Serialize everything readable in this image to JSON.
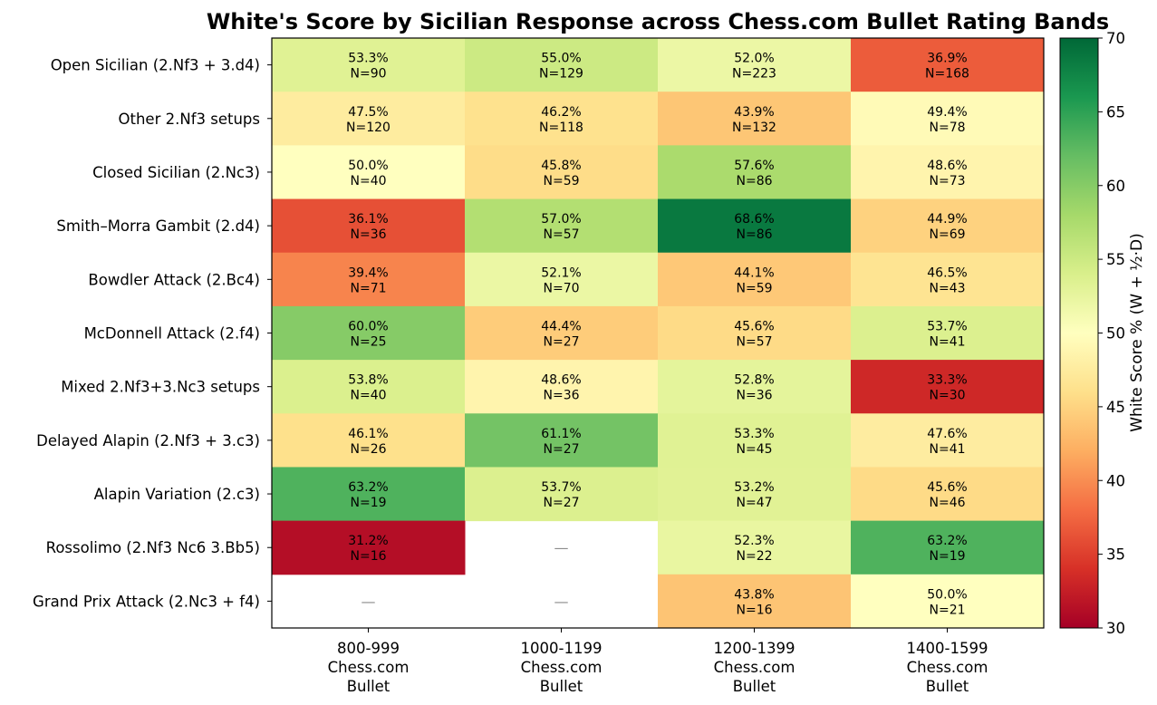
{
  "chart_data": {
    "type": "heatmap",
    "title": "White's Score by Sicilian Response across Chess.com Bullet Rating Bands",
    "rows": [
      "Open Sicilian (2.Nf3 + 3.d4)",
      "Other 2.Nf3 setups",
      "Closed Sicilian (2.Nc3)",
      "Smith–Morra Gambit (2.d4)",
      "Bowdler Attack (2.Bc4)",
      "McDonnell Attack (2.f4)",
      "Mixed 2.Nf3+3.Nc3 setups",
      "Delayed Alapin (2.Nf3 + 3.c3)",
      "Alapin Variation (2.c3)",
      "Rossolimo (2.Nf3 Nc6 3.Bb5)",
      "Grand Prix Attack (2.Nc3 + f4)"
    ],
    "columns": [
      [
        "800-999",
        "Chess.com",
        "Bullet"
      ],
      [
        "1000-1199",
        "Chess.com",
        "Bullet"
      ],
      [
        "1200-1399",
        "Chess.com",
        "Bullet"
      ],
      [
        "1400-1599",
        "Chess.com",
        "Bullet"
      ]
    ],
    "values": [
      [
        53.3,
        55.0,
        52.0,
        36.9
      ],
      [
        47.5,
        46.2,
        43.9,
        49.4
      ],
      [
        50.0,
        45.8,
        57.6,
        48.6
      ],
      [
        36.1,
        57.0,
        68.6,
        44.9
      ],
      [
        39.4,
        52.1,
        44.1,
        46.5
      ],
      [
        60.0,
        44.4,
        45.6,
        53.7
      ],
      [
        53.8,
        48.6,
        52.8,
        33.3
      ],
      [
        46.1,
        61.1,
        53.3,
        47.6
      ],
      [
        63.2,
        53.7,
        53.2,
        45.6
      ],
      [
        31.2,
        null,
        52.3,
        63.2
      ],
      [
        null,
        null,
        43.8,
        50.0
      ]
    ],
    "cell_labels": [
      [
        "53.3%",
        "55.0%",
        "52.0%",
        "36.9%"
      ],
      [
        "47.5%",
        "46.2%",
        "43.9%",
        "49.4%"
      ],
      [
        "50.0%",
        "45.8%",
        "57.6%",
        "48.6%"
      ],
      [
        "36.1%",
        "57.0%",
        "68.6%",
        "44.9%"
      ],
      [
        "39.4%",
        "52.1%",
        "44.1%",
        "46.5%"
      ],
      [
        "60.0%",
        "44.4%",
        "45.6%",
        "53.7%"
      ],
      [
        "53.8%",
        "48.6%",
        "52.8%",
        "33.3%"
      ],
      [
        "46.1%",
        "61.1%",
        "53.3%",
        "47.6%"
      ],
      [
        "63.2%",
        "53.7%",
        "53.2%",
        "45.6%"
      ],
      [
        "31.2%",
        "—",
        "52.3%",
        "63.2%"
      ],
      [
        "—",
        "—",
        "43.8%",
        "50.0%"
      ]
    ],
    "n_labels": [
      [
        "N=90",
        "N=129",
        "N=223",
        "N=168"
      ],
      [
        "N=120",
        "N=118",
        "N=132",
        "N=78"
      ],
      [
        "N=40",
        "N=59",
        "N=86",
        "N=73"
      ],
      [
        "N=36",
        "N=57",
        "N=86",
        "N=69"
      ],
      [
        "N=71",
        "N=70",
        "N=59",
        "N=43"
      ],
      [
        "N=25",
        "N=27",
        "N=57",
        "N=41"
      ],
      [
        "N=40",
        "N=36",
        "N=36",
        "N=30"
      ],
      [
        "N=26",
        "N=27",
        "N=45",
        "N=41"
      ],
      [
        "N=19",
        "N=27",
        "N=47",
        "N=46"
      ],
      [
        "N=16",
        "",
        "N=22",
        "N=19"
      ],
      [
        "",
        "",
        "N=16",
        "N=21"
      ]
    ],
    "colorbar": {
      "label": "White Score % (W + ½·D)",
      "min": 30,
      "max": 70,
      "ticks": [
        "30",
        "35",
        "40",
        "45",
        "50",
        "55",
        "60",
        "65",
        "70"
      ],
      "colormap": "RdYlGn"
    }
  }
}
